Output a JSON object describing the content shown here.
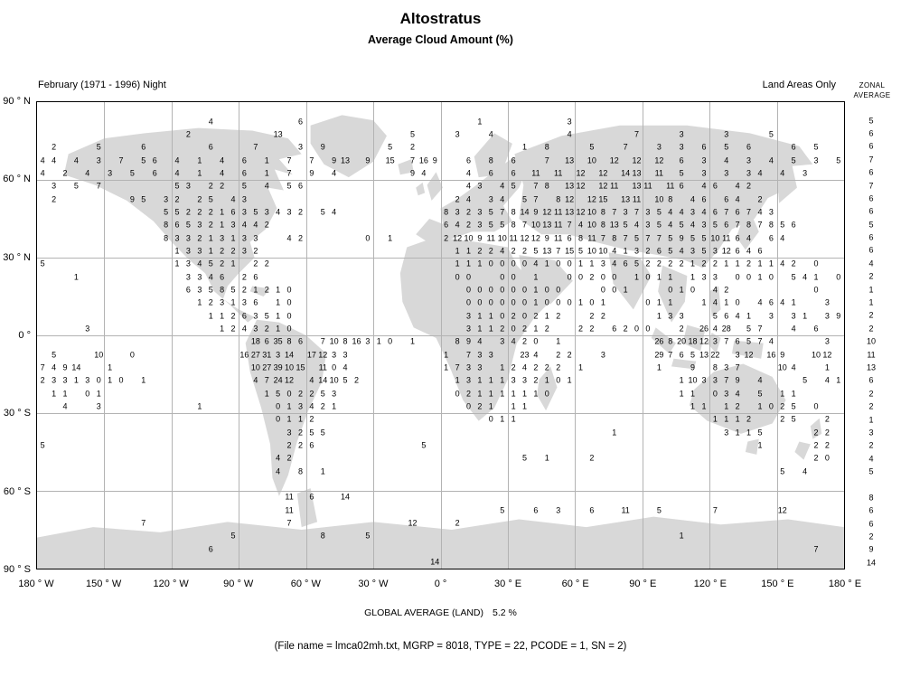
{
  "page": {
    "title": "Altostratus",
    "subtitle": "Average Cloud Amount (%)",
    "period_label": "February (1971 - 1996) Night",
    "coverage_label": "Land Areas Only",
    "zonal_label_line1": "ZONAL",
    "zonal_label_line2": "AVERAGE",
    "global_average_label": "GLOBAL AVERAGE (LAND)",
    "global_average_value": "5.2 %",
    "caption": "(File name = lmca02mh.txt, MGRP = 8018, TYPE = 22, PCODE = 1, SN = 2)"
  },
  "chart_data": {
    "type": "heatmap",
    "title": "Altostratus",
    "subtitle": "Average Cloud Amount (%)",
    "units": "percent cloud amount",
    "coverage": "Land Areas Only",
    "period": "February (1971 - 1996) Night",
    "grid_resolution_deg": 5,
    "cols": 72,
    "rows_count": 36,
    "lat_ticks": [
      "90 ° N",
      "60 ° N",
      "30 ° N",
      "0 °",
      "30 ° S",
      "60 ° S",
      "90 ° S"
    ],
    "lon_ticks": [
      "180 ° W",
      "150 ° W",
      "120 ° W",
      "90 ° W",
      "60 ° W",
      "30 ° W",
      "0 °",
      "30 ° E",
      "60 ° E",
      "90 ° E",
      "120 ° E",
      "150 ° E",
      "180 ° E"
    ],
    "global_average_percent": 5.2,
    "zonal_averages": [
      [
        1,
        5
      ],
      [
        2,
        6
      ],
      [
        3,
        6
      ],
      [
        4,
        7
      ],
      [
        5,
        6
      ],
      [
        6,
        7
      ],
      [
        7,
        6
      ],
      [
        8,
        6
      ],
      [
        9,
        5
      ],
      [
        10,
        6
      ],
      [
        11,
        6
      ],
      [
        12,
        4
      ],
      [
        13,
        2
      ],
      [
        14,
        1
      ],
      [
        15,
        1
      ],
      [
        16,
        2
      ],
      [
        17,
        2
      ],
      [
        18,
        10
      ],
      [
        19,
        11
      ],
      [
        20,
        13
      ],
      [
        21,
        6
      ],
      [
        22,
        2
      ],
      [
        23,
        2
      ],
      [
        24,
        1
      ],
      [
        25,
        3
      ],
      [
        26,
        2
      ],
      [
        27,
        4
      ],
      [
        28,
        5
      ],
      [
        30,
        8
      ],
      [
        31,
        6
      ],
      [
        32,
        6
      ],
      [
        33,
        2
      ],
      [
        34,
        9
      ],
      [
        35,
        14
      ]
    ],
    "rows": [
      [
        1,
        [
          [
            15,
            "4"
          ],
          [
            23,
            "6"
          ],
          [
            39,
            "1"
          ],
          [
            47,
            "3"
          ]
        ]
      ],
      [
        2,
        [
          [
            13,
            "2"
          ],
          [
            21,
            "13"
          ],
          [
            33,
            "5"
          ],
          [
            37,
            "3"
          ],
          [
            40,
            "4"
          ],
          [
            47,
            "4"
          ],
          [
            53,
            "7"
          ],
          [
            57,
            "3"
          ],
          [
            61,
            "3"
          ],
          [
            65,
            "5"
          ]
        ]
      ],
      [
        3,
        [
          [
            1,
            "2"
          ],
          [
            5,
            "5"
          ],
          [
            9,
            "6"
          ],
          [
            15,
            "6"
          ],
          [
            19,
            "7"
          ],
          [
            23,
            "3 . 9"
          ],
          [
            31,
            "5 . 2"
          ],
          [
            43,
            "1 . 8"
          ],
          [
            49,
            "5 . . 7"
          ],
          [
            55,
            "3 . 3 . 6"
          ],
          [
            61,
            "5 . 6"
          ],
          [
            67,
            "6 . 5"
          ]
        ]
      ],
      [
        4,
        [
          [
            0,
            "4 4 . 4 . 3 . 7 . 5 6 . 4 . 1 . 4 . 6 . 1 . 7 . 7"
          ],
          [
            26,
            "9 13 . 9 . 15"
          ],
          [
            33,
            "7 16 9"
          ],
          [
            38,
            "6 . 8 . 6 . . 7 . 13 . 10 . 12 . 12 . 12 . 6"
          ],
          [
            59,
            "3 . 4 . 3 . 4 . 5 . 3 . 5"
          ]
        ]
      ],
      [
        5,
        [
          [
            0,
            "4 . 2 . 4 . 3 . 5 . 6 . 4 . 1 . 4 . 6 . 1 . 7 . 9 . 4"
          ],
          [
            33,
            "9 4"
          ],
          [
            38,
            "4 . 6 . 6 . 11 . 11 . 12 . 12 . 14 13 . 11 . 5"
          ],
          [
            59,
            "3 . 3 . 3 4 . 4 . 3"
          ]
        ]
      ],
      [
        6,
        [
          [
            1,
            "3 . 5 . 7"
          ],
          [
            12,
            "5 3 . 2 2 . 5 . 4 . 5 6"
          ],
          [
            38,
            "4 3 . 4 5 . 7 8 . 13 12 . 12 11 . 13 11 . 11 6 . 4 6 . 4 2"
          ]
        ]
      ],
      [
        7,
        [
          [
            1,
            "2"
          ],
          [
            8,
            "9 5 . 3 2 . 2 5 . 4 3"
          ],
          [
            37,
            "2 4 . 3 4 . 5 7 . 8 12 . 12 15 . 13 11 . 10 8 . 4 6 . 6 4 . 2"
          ]
        ]
      ],
      [
        8,
        [
          [
            11,
            "5 5 2 2 2 1 6 3 5 3 4 3 2"
          ],
          [
            25,
            "5 4"
          ],
          [
            36,
            "8 3 2 3 5 7 8 14 9 12 11 13 12 10 8 7 3 7 3 5 4 4 3 4 6 7 6 7 4 3"
          ]
        ]
      ],
      [
        9,
        [
          [
            11,
            "8 6 5 3 2 1 3 4 4 2"
          ],
          [
            36,
            "6 4 2 3 5 5 8 7 10 13 11 7 4 10 8 13 5 4 3 5 4 5 4 3 5 6 7 8 7 8 5 6"
          ]
        ]
      ],
      [
        10,
        [
          [
            11,
            "8 3 3 2 1 3 1 3 3"
          ],
          [
            22,
            "4 2"
          ],
          [
            29,
            "0 . 1"
          ],
          [
            36,
            "2 12 10 9 11 10 11 12 12 9 11 6 8 11 7 8 7 5 7 7 5 9 5 5 10 11 6 4"
          ],
          [
            65,
            "6 4"
          ]
        ]
      ],
      [
        11,
        [
          [
            12,
            "1 3 3 1 2 2 3 2"
          ],
          [
            37,
            "1 1 2 2 4 2 2 5 13 7 15 5 10 10 4 1 3 2 6 5 4 3 5 3 12 6 4 6"
          ]
        ]
      ],
      [
        12,
        [
          [
            0,
            "5"
          ],
          [
            12,
            "1 3 4 5 2 1 . 2 2"
          ],
          [
            37,
            "1 1 1 0 0 0 0 4 1 0 0 1 1 3 4 6 5 2 2 2 2 1 2 2 1 1 2 1 1 4 2"
          ],
          [
            69,
            "0"
          ]
        ]
      ],
      [
        13,
        [
          [
            3,
            "1"
          ],
          [
            13,
            "3 3 4 6"
          ],
          [
            18,
            "2 6"
          ],
          [
            37,
            "0 0 . . 0 0 . 1 . . 0 0 2 0 0"
          ],
          [
            53,
            "1 0 1 1 . 1 3 3 . 0 0 1 0 . 5 4 1"
          ],
          [
            71,
            "0"
          ]
        ]
      ],
      [
        14,
        [
          [
            13,
            "6 3 5 8 5 2 1 2 1 0"
          ],
          [
            38,
            "0 0 0 0 0 0 1 0 0"
          ],
          [
            50,
            "0 0 1"
          ],
          [
            56,
            "0 1 0 . 4 2"
          ],
          [
            69,
            "0"
          ]
        ]
      ],
      [
        15,
        [
          [
            14,
            "1 2 3 1 3 6 . 1 0"
          ],
          [
            38,
            "0 0 0 0 0 0 1 0 0 0 1 0 1"
          ],
          [
            54,
            "0 1 1"
          ],
          [
            59,
            "1 4 1 0"
          ],
          [
            64,
            "4 6 4 1"
          ],
          [
            70,
            "3"
          ]
        ]
      ],
      [
        16,
        [
          [
            15,
            "1 1 2 6 3 5 1 0"
          ],
          [
            38,
            "3 1 1 0 2 0 2 1 2"
          ],
          [
            49,
            "2 2"
          ],
          [
            55,
            "1 3 3"
          ],
          [
            60,
            "5 6 4 1"
          ],
          [
            65,
            "3"
          ],
          [
            67,
            "3 1"
          ],
          [
            70,
            "3 9"
          ]
        ]
      ],
      [
        17,
        [
          [
            4,
            "3"
          ],
          [
            16,
            "1 2 4 3 2 1 0"
          ],
          [
            38,
            "3 1 1 2 0 2 1 2"
          ],
          [
            48,
            "2 2"
          ],
          [
            51,
            "6 2 0 0"
          ],
          [
            57,
            "2"
          ],
          [
            59,
            "26 4 28 . 5 7"
          ],
          [
            67,
            "4"
          ],
          [
            69,
            "6"
          ]
        ]
      ],
      [
        18,
        [
          [
            19,
            "18 6 35 8 6 . 7 10 8 16 3 1"
          ],
          [
            31,
            "0 . 1"
          ],
          [
            37,
            "8 9 4 . 3 4 2 0"
          ],
          [
            46,
            "1"
          ],
          [
            55,
            "26 8 20 18 12 3 7 6 5 7 4"
          ],
          [
            70,
            "3"
          ]
        ]
      ],
      [
        19,
        [
          [
            1,
            "5"
          ],
          [
            5,
            "10"
          ],
          [
            8,
            "0"
          ],
          [
            18,
            "16 27 31 3 14 . 17 12 3 3"
          ],
          [
            36,
            "1 . 7 3 3"
          ],
          [
            43,
            "23 4"
          ],
          [
            46,
            "2 2"
          ],
          [
            50,
            "3"
          ],
          [
            55,
            "29 7 6 5 13 22 . 3 12"
          ],
          [
            65,
            "16 9"
          ],
          [
            69,
            "10 12"
          ]
        ]
      ],
      [
        20,
        [
          [
            0,
            "7 4 9 14"
          ],
          [
            6,
            "1"
          ],
          [
            19,
            "10 27 39 10 15 . 11 0 4"
          ],
          [
            36,
            "1 7 3 3 . 1 2 4 2 2 2 . 1"
          ],
          [
            55,
            "1"
          ],
          [
            58,
            "9 . 8 3 7"
          ],
          [
            66,
            "10 4"
          ],
          [
            70,
            "1"
          ]
        ]
      ],
      [
        21,
        [
          [
            0,
            "2 3 3 1 3 0 1 0"
          ],
          [
            9,
            "1"
          ],
          [
            19,
            "4 7 24 12 . 4 14 10 5 2"
          ],
          [
            37,
            "1 3 1 1 1 3 3 2 1 0 1"
          ],
          [
            57,
            "1 10 3 3 7 9"
          ],
          [
            64,
            "4"
          ],
          [
            68,
            "5 . 4 1"
          ]
        ]
      ],
      [
        22,
        [
          [
            1,
            "1 1 . 0 1"
          ],
          [
            20,
            "1 5 0 2 2 5 3"
          ],
          [
            37,
            "0 2 1 1 1 1 1 1 0"
          ],
          [
            57,
            "1 1 . 0 3 4"
          ],
          [
            64,
            "5"
          ],
          [
            66,
            "1 1"
          ]
        ]
      ],
      [
        23,
        [
          [
            2,
            "4"
          ],
          [
            5,
            "3"
          ],
          [
            14,
            "1"
          ],
          [
            21,
            "0 1 3 4 2 1"
          ],
          [
            38,
            "0 2 1 . 1 1"
          ],
          [
            58,
            "1 1 . 1 2"
          ],
          [
            64,
            "1 0 2 5"
          ],
          [
            69,
            "0"
          ]
        ]
      ],
      [
        24,
        [
          [
            21,
            "0 1 1 2"
          ],
          [
            40,
            "0 1 1"
          ],
          [
            60,
            "1 1 1 2"
          ],
          [
            66,
            "2 5"
          ],
          [
            70,
            "2"
          ]
        ]
      ],
      [
        25,
        [
          [
            22,
            "3 2 5 5"
          ],
          [
            51,
            "1"
          ],
          [
            61,
            "3 1 1 5"
          ],
          [
            69,
            "2 2"
          ]
        ]
      ],
      [
        26,
        [
          [
            0,
            "5"
          ],
          [
            22,
            "2 2 6"
          ],
          [
            34,
            "5"
          ],
          [
            64,
            "1"
          ],
          [
            69,
            "2 2"
          ]
        ]
      ],
      [
        27,
        [
          [
            21,
            "4 2"
          ],
          [
            43,
            "5 . 1"
          ],
          [
            49,
            "2"
          ],
          [
            69,
            "2 0"
          ]
        ]
      ],
      [
        28,
        [
          [
            21,
            "4 . 8"
          ],
          [
            25,
            "1"
          ],
          [
            66,
            "5 . 4"
          ]
        ]
      ],
      [
        30,
        [
          [
            22,
            "11 . 6 . . 14"
          ]
        ]
      ],
      [
        31,
        [
          [
            22,
            "11"
          ],
          [
            41,
            "5"
          ],
          [
            44,
            "6"
          ],
          [
            46,
            "3"
          ],
          [
            49,
            "6"
          ],
          [
            52,
            "11"
          ],
          [
            55,
            "5"
          ],
          [
            60,
            "7"
          ],
          [
            66,
            "12"
          ]
        ]
      ],
      [
        32,
        [
          [
            9,
            "7"
          ],
          [
            22,
            "7"
          ],
          [
            33,
            "12"
          ],
          [
            37,
            "2"
          ]
        ]
      ],
      [
        33,
        [
          [
            17,
            "5"
          ],
          [
            25,
            "8"
          ],
          [
            29,
            "5"
          ],
          [
            57,
            "1"
          ]
        ]
      ],
      [
        34,
        [
          [
            15,
            "6"
          ],
          [
            69,
            "7"
          ]
        ]
      ],
      [
        35,
        [
          [
            35,
            "14"
          ]
        ]
      ]
    ]
  }
}
